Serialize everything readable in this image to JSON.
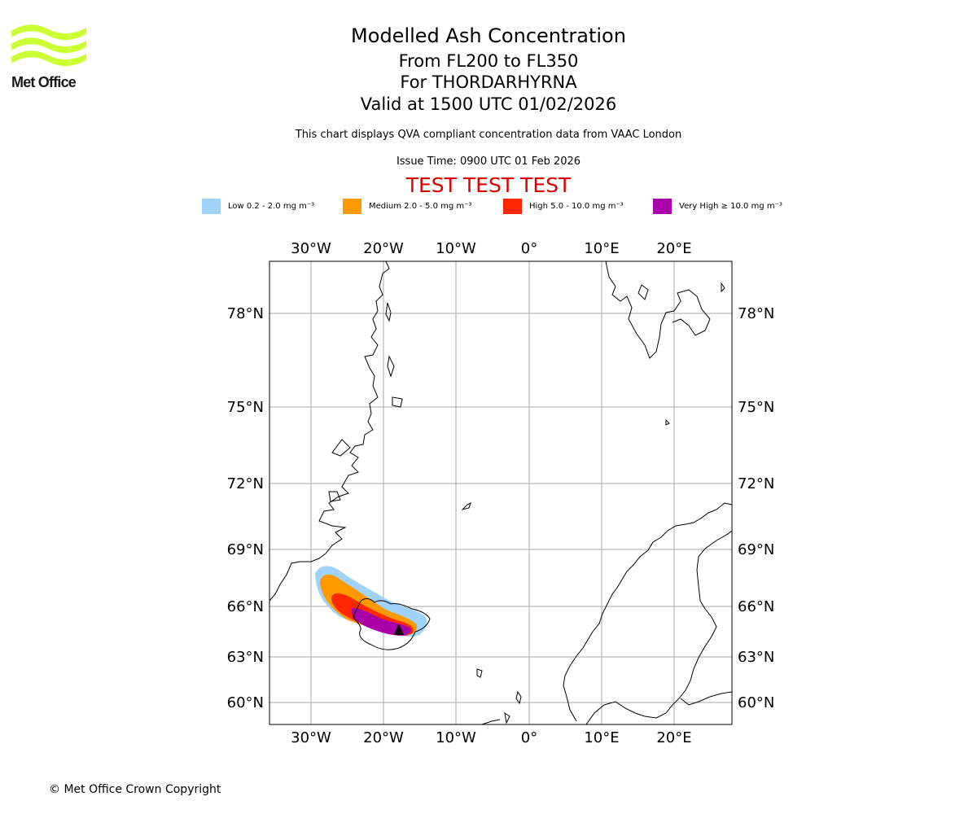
{
  "logo": {
    "text": "Met Office",
    "color": "#ccff33"
  },
  "header": {
    "title": "Modelled Ash Concentration",
    "flight_levels": "From FL200 to FL350",
    "volcano": "For THORDARHYRNA",
    "valid": "Valid at 1500 UTC 01/02/2026",
    "description": "This chart displays QVA compliant concentration data from VAAC London",
    "issue_time": "Issue Time: 0900 UTC 01 Feb 2026",
    "test_banner": "TEST TEST TEST",
    "test_color": "#dd0000"
  },
  "legend": [
    {
      "label": "Low 0.2 - 2.0 mg m⁻³",
      "color": "#a0d2fa"
    },
    {
      "label": "Medium 2.0 - 5.0 mg m⁻³",
      "color": "#ff9900"
    },
    {
      "label": "High 5.0 - 10.0 mg m⁻³",
      "color": "#ff2800"
    },
    {
      "label": "Very High ≥ 10.0 mg m⁻³",
      "color": "#aa00aa"
    }
  ],
  "map": {
    "lon_labels": [
      "30°W",
      "20°W",
      "10°W",
      "0°",
      "10°E",
      "20°E"
    ],
    "lat_labels": [
      "78°N",
      "75°N",
      "72°N",
      "69°N",
      "66°N",
      "63°N",
      "60°N"
    ]
  },
  "footer": {
    "copyright": "© Met Office Crown Copyright"
  }
}
